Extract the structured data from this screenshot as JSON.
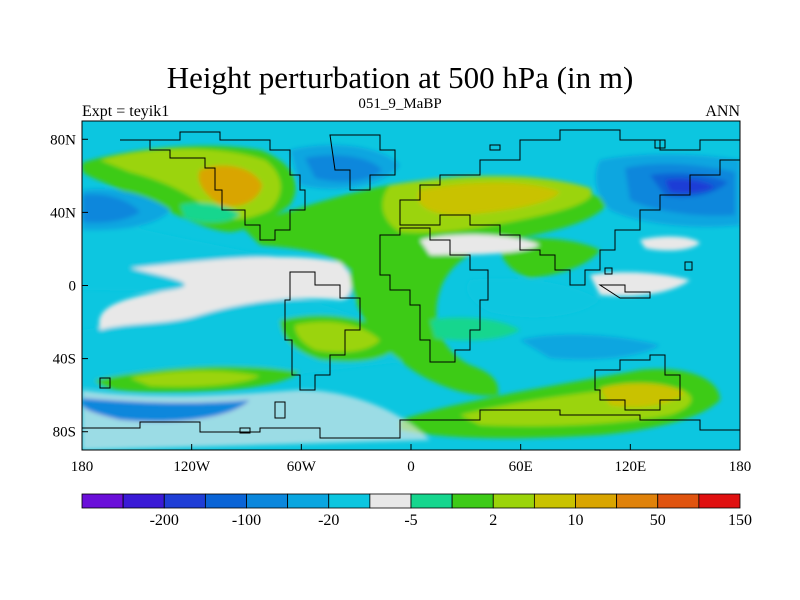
{
  "chart_data": {
    "type": "heatmap",
    "title": "Height perturbation at 500 hPa (in m)",
    "subtitle_left": "Expt = teyik1",
    "subtitle_center": "051_9_MaBP",
    "subtitle_right": "ANN",
    "x_range": [
      -180,
      180
    ],
    "y_range": [
      -90,
      90
    ],
    "x_ticks": [
      {
        "value": -180,
        "label": "180"
      },
      {
        "value": -120,
        "label": "120W"
      },
      {
        "value": -60,
        "label": "60W"
      },
      {
        "value": 0,
        "label": "0"
      },
      {
        "value": 60,
        "label": "60E"
      },
      {
        "value": 120,
        "label": "120E"
      },
      {
        "value": 180,
        "label": "180"
      }
    ],
    "y_ticks": [
      {
        "value": 80,
        "label": "80N"
      },
      {
        "value": 40,
        "label": "40N"
      },
      {
        "value": 0,
        "label": "0"
      },
      {
        "value": -40,
        "label": "40S"
      },
      {
        "value": -80,
        "label": "80S"
      }
    ],
    "colorbar": {
      "colors": [
        "#6a0fd9",
        "#3a1ad6",
        "#1f3ed6",
        "#0a64d6",
        "#0b87dc",
        "#0aa6e0",
        "#0cc6e0",
        "#e8e8e8",
        "#16d68e",
        "#3ecb18",
        "#9bd40a",
        "#c9c200",
        "#d9a500",
        "#e0820a",
        "#e0540f",
        "#e01010"
      ],
      "labels": [
        {
          "after_index": 1,
          "text": "-200"
        },
        {
          "after_index": 3,
          "text": "-100"
        },
        {
          "after_index": 5,
          "text": "-20"
        },
        {
          "after_index": 7,
          "text": "-5"
        },
        {
          "after_index": 9,
          "text": "2"
        },
        {
          "after_index": 11,
          "text": "10"
        },
        {
          "after_index": 13,
          "text": "50"
        },
        {
          "after_index": 15,
          "text": "150"
        }
      ]
    },
    "field_level_colors": {
      "dark_blue": "#1f3ed6",
      "blue": "#0a64d6",
      "mid_blue": "#0b87dc",
      "light_blue": "#0aa6e0",
      "cyan": "#0cc6e0",
      "neutral": "#e8e8e8",
      "teal": "#16d68e",
      "green": "#3ecb18",
      "yellow_green": "#9bd40a",
      "yellow": "#c9c200",
      "orange": "#d9a500"
    }
  }
}
